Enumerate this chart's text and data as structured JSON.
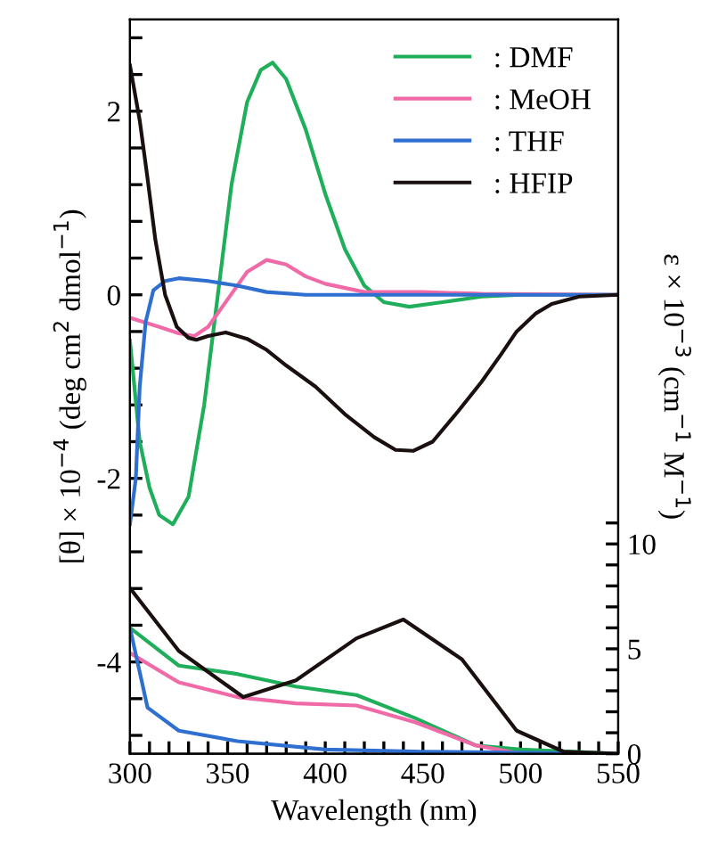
{
  "chart_data": {
    "type": "line",
    "xlabel": "Wavelength (nm)",
    "ylabel": "[θ] × 10$^{−4}$ (deg cm$^{2}$ dmol$^{−1}$)",
    "y2label": "ε × 10$^{−3}$ (cm$^{−1}$ M$^{−1}$)",
    "xlim": [
      300,
      550
    ],
    "xticks": [
      300,
      {
        "value": 310,
        "label": null
      },
      {
        "value": 320,
        "label": null
      },
      {
        "value": 330,
        "label": null
      },
      {
        "value": 340,
        "label": null
      },
      350,
      {
        "value": 360,
        "label": null
      },
      {
        "value": 370,
        "label": null
      },
      {
        "value": 380,
        "label": null
      },
      {
        "value": 390,
        "label": null
      },
      400,
      {
        "value": 410,
        "label": null
      },
      {
        "value": 420,
        "label": null
      },
      {
        "value": 430,
        "label": null
      },
      {
        "value": 440,
        "label": null
      },
      450,
      {
        "value": 460,
        "label": null
      },
      {
        "value": 470,
        "label": null
      },
      {
        "value": 480,
        "label": null
      },
      {
        "value": 490,
        "label": null
      },
      500,
      {
        "value": 510,
        "label": null
      },
      {
        "value": 520,
        "label": null
      },
      {
        "value": 530,
        "label": null
      },
      {
        "value": 540,
        "label": null
      },
      550
    ],
    "ylim": [
      -5,
      3
    ],
    "yticks": [
      {
        "value": -4.8,
        "label": null
      },
      {
        "value": -4.4,
        "label": null
      },
      -4,
      {
        "value": -3.6,
        "label": null
      },
      {
        "value": -3.2,
        "label": null
      },
      {
        "value": -2.8,
        "label": null
      },
      {
        "value": -2.4,
        "label": null
      },
      -2,
      {
        "value": -1.6,
        "label": null
      },
      {
        "value": -1.2,
        "label": null
      },
      {
        "value": -0.8,
        "label": null
      },
      {
        "value": -0.4,
        "label": null
      },
      0,
      {
        "value": 0.4,
        "label": null
      },
      {
        "value": 0.8,
        "label": null
      },
      {
        "value": 1.2,
        "label": null
      },
      {
        "value": 1.6,
        "label": null
      },
      2,
      {
        "value": 2.4,
        "label": null
      },
      {
        "value": 2.8,
        "label": null
      }
    ],
    "y2lim": [
      0,
      35
    ],
    "y2ticks": [
      0,
      {
        "value": 1,
        "label": null
      },
      {
        "value": 2,
        "label": null
      },
      {
        "value": 3,
        "label": null
      },
      {
        "value": 4,
        "label": null
      },
      5,
      {
        "value": 6,
        "label": null
      },
      {
        "value": 7,
        "label": null
      },
      {
        "value": 8,
        "label": null
      },
      {
        "value": 9,
        "label": null
      },
      10,
      {
        "value": 11,
        "label": null
      }
    ],
    "legend": "top right",
    "grid": false,
    "marker": "none",
    "line_style": "solid",
    "series": [
      {
        "name": ": DMF",
        "color": "#1fae5a",
        "x": [
          300,
          305,
          310,
          315,
          322,
          330,
          338,
          345,
          352,
          360,
          367,
          373,
          380,
          390,
          400,
          410,
          420,
          430,
          443,
          460,
          480,
          500,
          550
        ],
        "values": [
          -0.5,
          -1.6,
          -2.1,
          -2.4,
          -2.5,
          -2.2,
          -1.2,
          0,
          1.2,
          2.1,
          2.45,
          2.53,
          2.35,
          1.8,
          1.1,
          0.5,
          0.1,
          -0.08,
          -0.13,
          -0.08,
          -0.02,
          0,
          0
        ]
      },
      {
        "name": ": MeOH",
        "color": "#f06aa8",
        "x": [
          300,
          315,
          325,
          333,
          340,
          350,
          360,
          370,
          380,
          390,
          400,
          420,
          450,
          480,
          550
        ],
        "values": [
          -0.25,
          -0.35,
          -0.42,
          -0.45,
          -0.35,
          -0.05,
          0.25,
          0.38,
          0.33,
          0.2,
          0.12,
          0.03,
          0.03,
          0.01,
          0
        ]
      },
      {
        "name": ": THF",
        "color": "#2f6fd0",
        "x": [
          300,
          303,
          305,
          308,
          312,
          318,
          325,
          340,
          355,
          370,
          390,
          550
        ],
        "values": [
          -2.5,
          -2.0,
          -1.0,
          -0.3,
          0.05,
          0.15,
          0.18,
          0.15,
          0.1,
          0.03,
          0,
          0
        ]
      },
      {
        "name": ": HFIP",
        "color": "#1a1010",
        "x": [
          300,
          305,
          309,
          313,
          318,
          324,
          330,
          334,
          340,
          349,
          360,
          370,
          380,
          395,
          410,
          425,
          436,
          445,
          455,
          468,
          480,
          490,
          498,
          508,
          516,
          530,
          550
        ],
        "values": [
          2.5,
          1.9,
          1.27,
          0.6,
          0,
          -0.35,
          -0.47,
          -0.49,
          -0.45,
          -0.41,
          -0.48,
          -0.6,
          -0.77,
          -1.0,
          -1.3,
          -1.55,
          -1.69,
          -1.7,
          -1.6,
          -1.27,
          -0.95,
          -0.65,
          -0.4,
          -0.2,
          -0.1,
          -0.02,
          0
        ]
      },
      {
        "color": "#1fae5a",
        "axis": "y2",
        "x": [
          300,
          325,
          355,
          385,
          416,
          446,
          477,
          500,
          550
        ],
        "values": [
          6.0,
          4.2,
          3.8,
          3.2,
          2.8,
          1.7,
          0.4,
          0.2,
          0
        ]
      },
      {
        "color": "#f06aa8",
        "axis": "y2",
        "x": [
          300,
          325,
          355,
          385,
          416,
          446,
          477,
          500,
          550
        ],
        "values": [
          4.8,
          3.4,
          2.7,
          2.4,
          2.3,
          1.5,
          0.4,
          0,
          0
        ]
      },
      {
        "color": "#2f6fd0",
        "axis": "y2",
        "x": [
          300,
          309,
          325,
          355,
          400,
          450,
          550
        ],
        "values": [
          6.0,
          2.2,
          1.1,
          0.6,
          0.2,
          0.1,
          0
        ]
      },
      {
        "color": "#1a1010",
        "axis": "y2",
        "x": [
          300,
          325,
          358,
          385,
          416,
          440,
          470,
          498,
          522,
          550
        ],
        "values": [
          7.9,
          4.9,
          2.7,
          3.5,
          5.5,
          6.4,
          4.5,
          1.1,
          0.1,
          0
        ]
      }
    ]
  }
}
